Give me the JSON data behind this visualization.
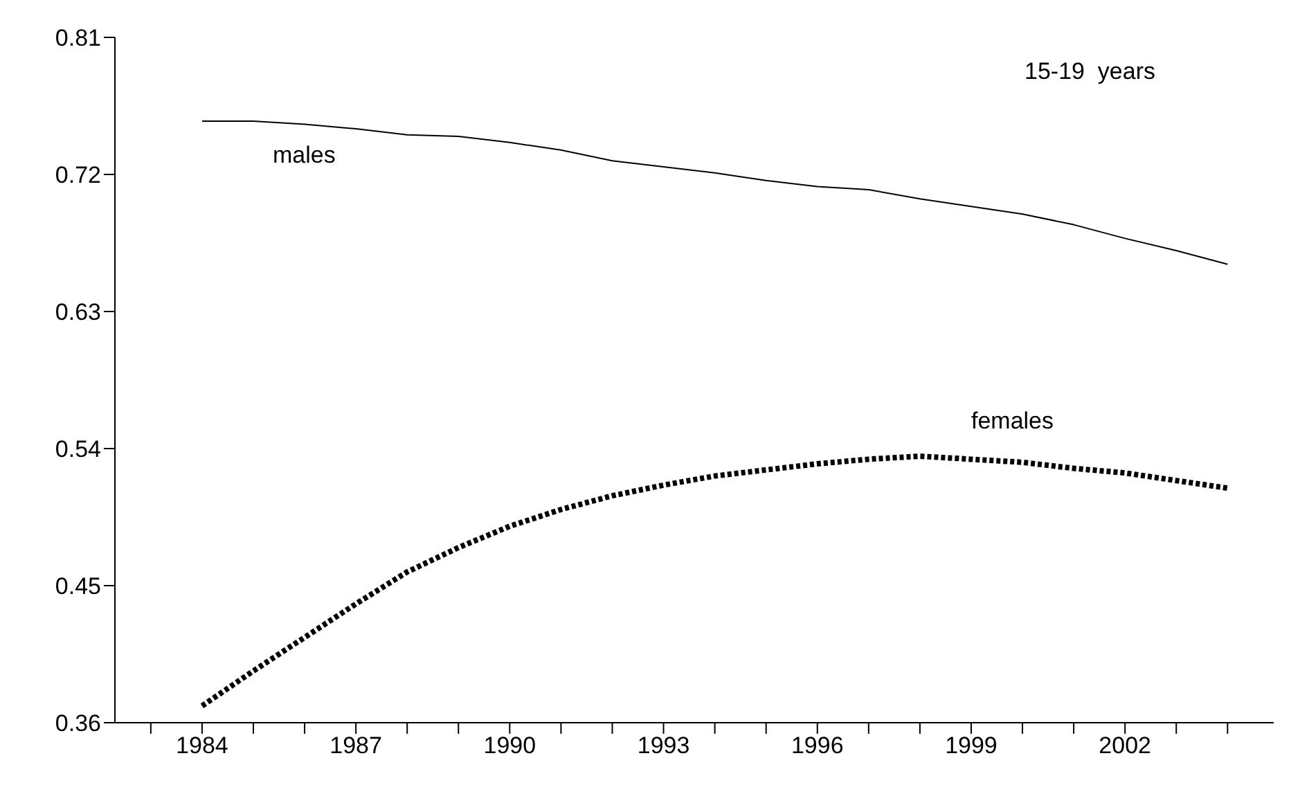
{
  "chart_data": {
    "type": "line",
    "annotations": [
      "15-19  years"
    ],
    "x": [
      1984,
      1985,
      1986,
      1987,
      1988,
      1989,
      1990,
      1991,
      1992,
      1993,
      1994,
      1995,
      1996,
      1997,
      1998,
      1999,
      2000,
      2001,
      2002,
      2003,
      2004
    ],
    "xlim": [
      1982.3,
      2004.9
    ],
    "xticks": [
      {
        "value": 1983,
        "label": null
      },
      1984,
      {
        "value": 1985,
        "label": null
      },
      {
        "value": 1986,
        "label": null
      },
      1987,
      {
        "value": 1988,
        "label": null
      },
      {
        "value": 1989,
        "label": null
      },
      1990,
      {
        "value": 1991,
        "label": null
      },
      {
        "value": 1992,
        "label": null
      },
      1993,
      {
        "value": 1994,
        "label": null
      },
      {
        "value": 1995,
        "label": null
      },
      1996,
      {
        "value": 1997,
        "label": null
      },
      {
        "value": 1998,
        "label": null
      },
      1999,
      {
        "value": 2000,
        "label": null
      },
      {
        "value": 2001,
        "label": null
      },
      2002,
      {
        "value": 2003,
        "label": null
      },
      {
        "value": 2004,
        "label": null
      }
    ],
    "ylim": [
      0.36,
      0.81
    ],
    "yticks": [
      0.36,
      0.45,
      0.54,
      0.63,
      0.72,
      0.81
    ],
    "marker": "none",
    "series": [
      {
        "name": "males",
        "color": "#000000",
        "line_style": "solid",
        "values": [
          0.755,
          0.755,
          0.753,
          0.75,
          0.746,
          0.745,
          0.741,
          0.736,
          0.729,
          0.725,
          0.721,
          0.716,
          0.712,
          0.71,
          0.704,
          0.699,
          0.694,
          0.687,
          0.678,
          0.67,
          0.661
        ]
      },
      {
        "name": "females",
        "color": "#000000",
        "line_style": "dotted",
        "values": [
          0.371,
          0.394,
          0.416,
          0.438,
          0.459,
          0.475,
          0.489,
          0.5,
          0.509,
          0.516,
          0.522,
          0.526,
          0.53,
          0.533,
          0.535,
          0.533,
          0.531,
          0.527,
          0.524,
          0.519,
          0.514
        ]
      }
    ]
  }
}
